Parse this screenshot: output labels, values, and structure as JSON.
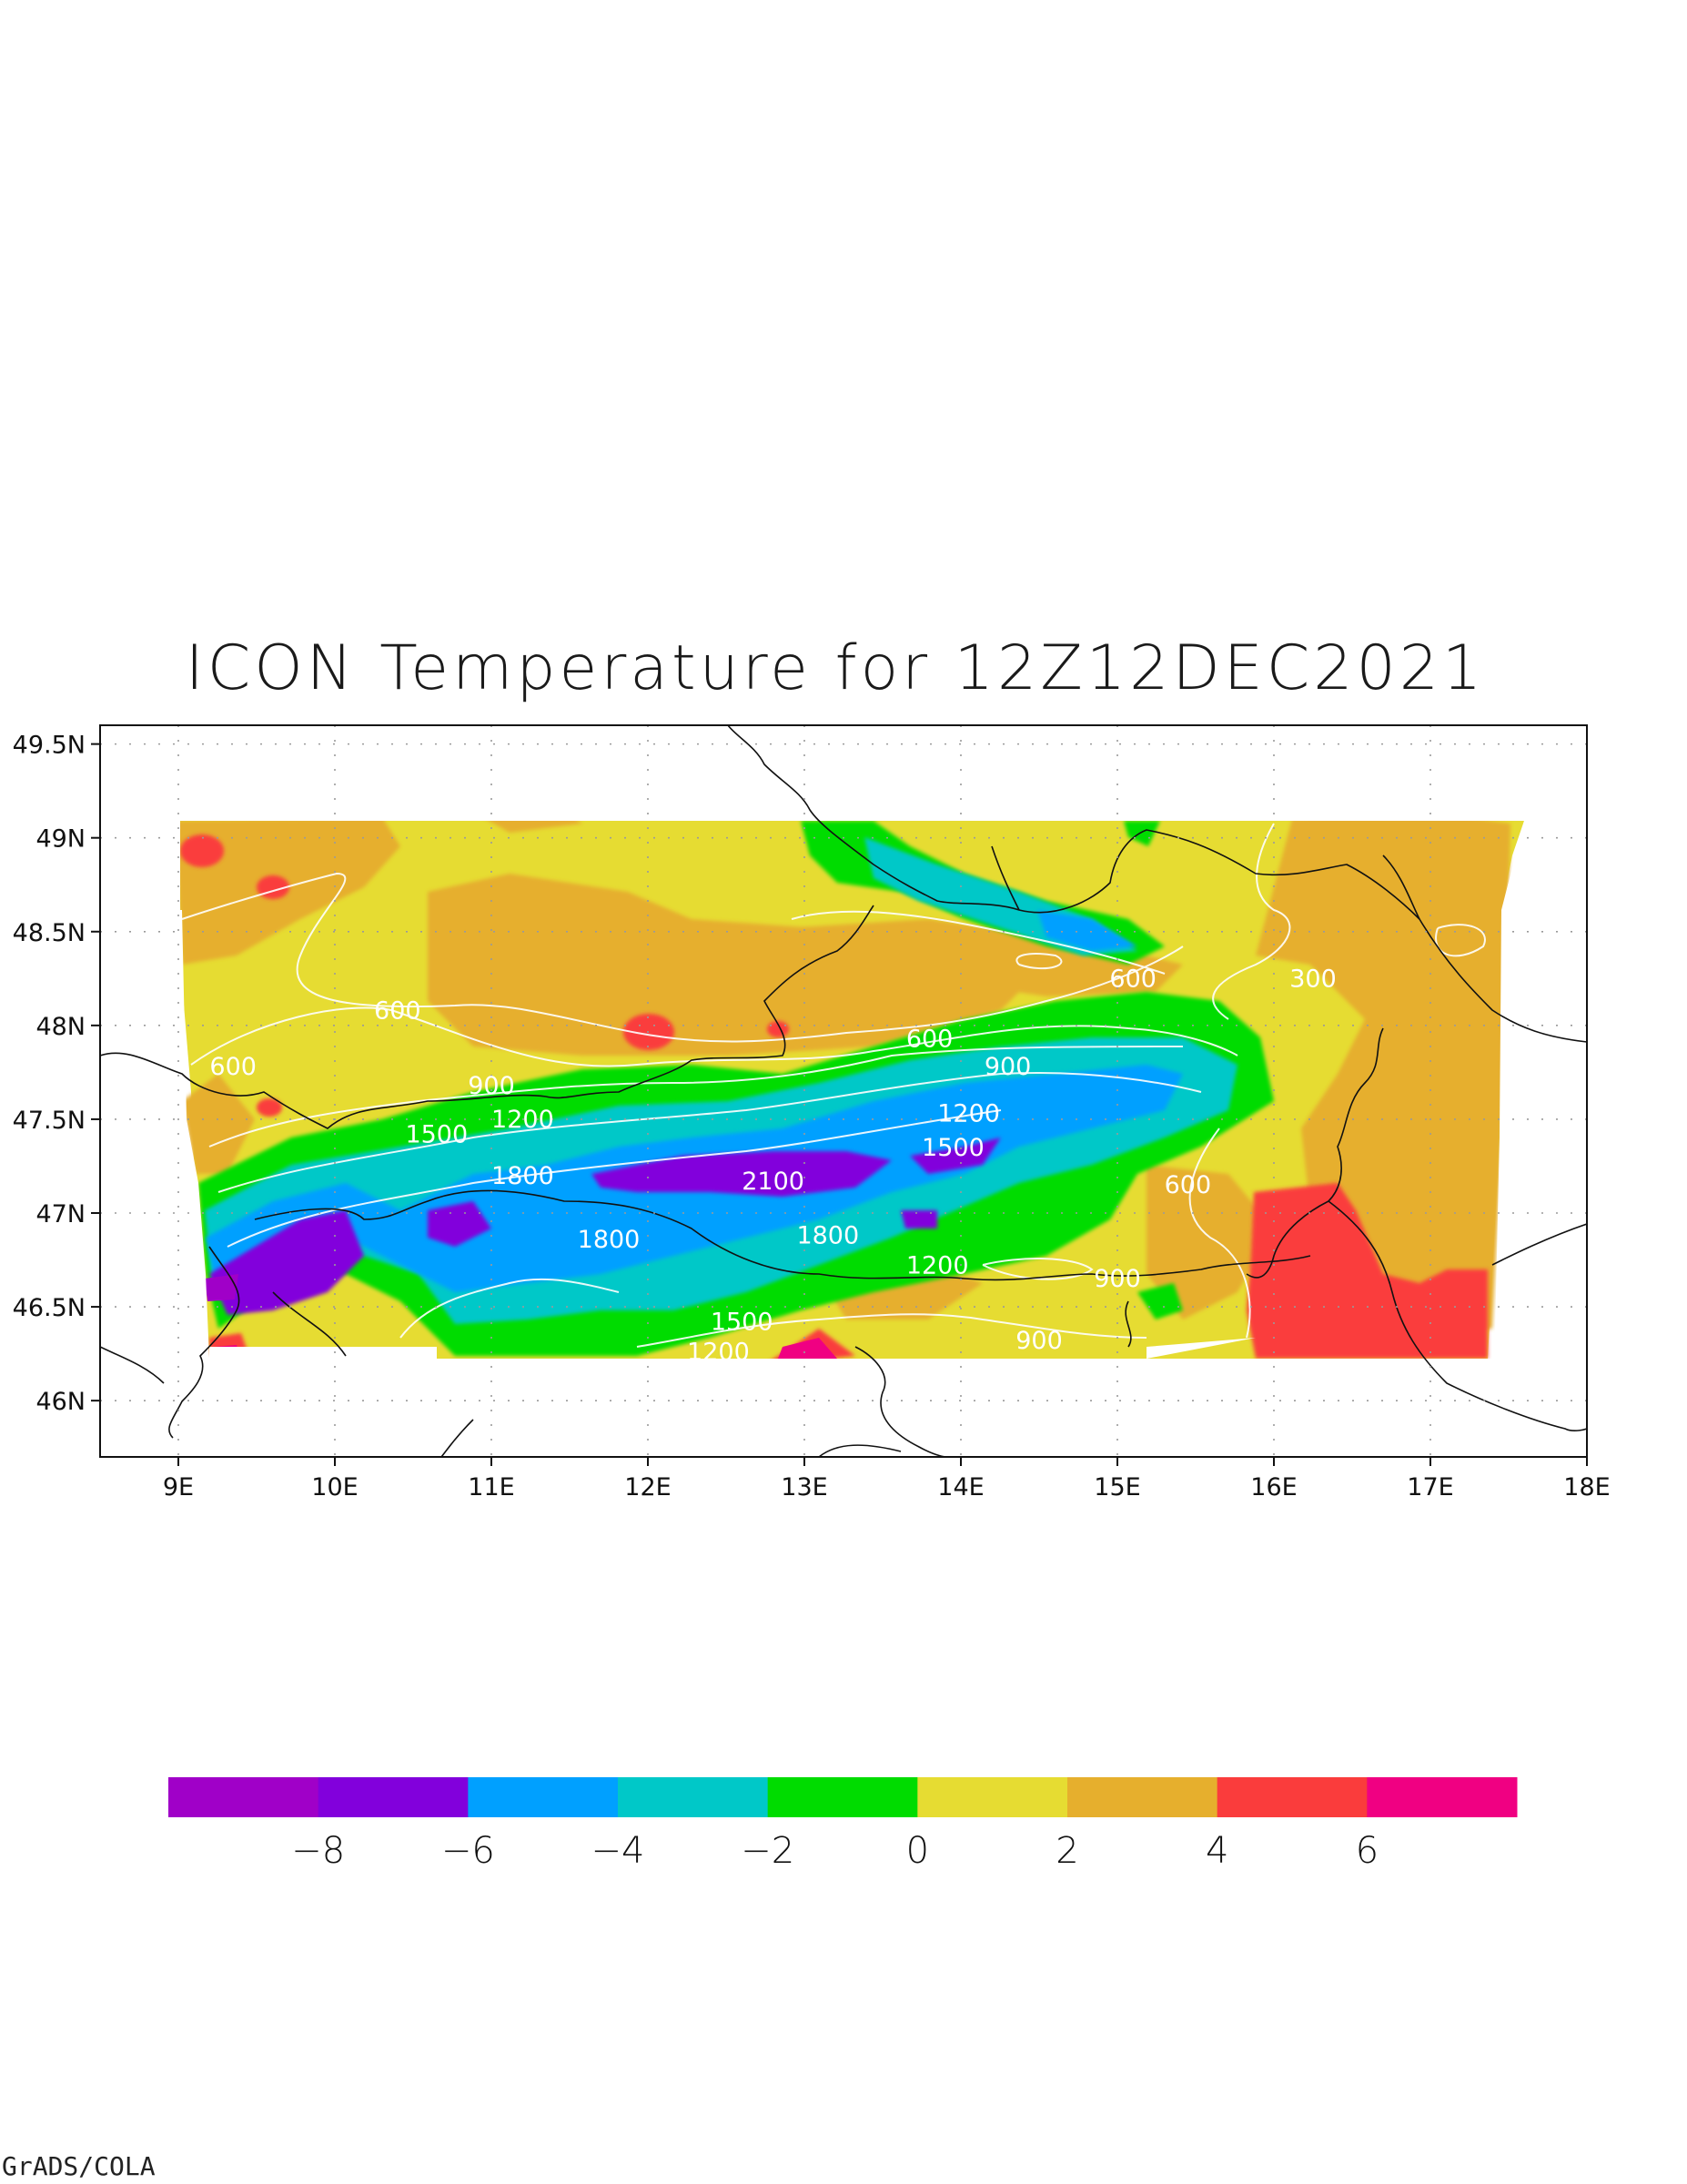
{
  "title": "ICON Temperature for 12Z12DEC2021",
  "footer": "GrADS/COLA",
  "map": {
    "lon_range": [
      8.5,
      18.0
    ],
    "lat_range": [
      45.7,
      49.6
    ],
    "lon_ticks": [
      {
        "v": 9,
        "label": "9E"
      },
      {
        "v": 10,
        "label": "10E"
      },
      {
        "v": 11,
        "label": "11E"
      },
      {
        "v": 12,
        "label": "12E"
      },
      {
        "v": 13,
        "label": "13E"
      },
      {
        "v": 14,
        "label": "14E"
      },
      {
        "v": 15,
        "label": "15E"
      },
      {
        "v": 16,
        "label": "16E"
      },
      {
        "v": 17,
        "label": "17E"
      },
      {
        "v": 18,
        "label": "18E"
      }
    ],
    "lat_ticks": [
      {
        "v": 49.5,
        "label": "49.5N"
      },
      {
        "v": 49.0,
        "label": "49N"
      },
      {
        "v": 48.5,
        "label": "48.5N"
      },
      {
        "v": 48.0,
        "label": "48N"
      },
      {
        "v": 47.5,
        "label": "47.5N"
      },
      {
        "v": 47.0,
        "label": "47N"
      },
      {
        "v": 46.5,
        "label": "46.5N"
      },
      {
        "v": 46.0,
        "label": "46N"
      }
    ],
    "grid": true,
    "contour_labels": [
      {
        "text": "600",
        "lon": 10.4,
        "lat": 48.08
      },
      {
        "text": "600",
        "lon": 9.35,
        "lat": 47.78
      },
      {
        "text": "600",
        "lon": 13.8,
        "lat": 47.93
      },
      {
        "text": "600",
        "lon": 15.1,
        "lat": 48.25
      },
      {
        "text": "300",
        "lon": 16.25,
        "lat": 48.25
      },
      {
        "text": "900",
        "lon": 11.0,
        "lat": 47.68
      },
      {
        "text": "900",
        "lon": 14.3,
        "lat": 47.78
      },
      {
        "text": "1200",
        "lon": 11.2,
        "lat": 47.5
      },
      {
        "text": "1200",
        "lon": 14.05,
        "lat": 47.53
      },
      {
        "text": "1500",
        "lon": 10.65,
        "lat": 47.42
      },
      {
        "text": "1500",
        "lon": 13.95,
        "lat": 47.35
      },
      {
        "text": "1800",
        "lon": 11.2,
        "lat": 47.2
      },
      {
        "text": "2100",
        "lon": 12.8,
        "lat": 47.17
      },
      {
        "text": "1800",
        "lon": 11.75,
        "lat": 46.86
      },
      {
        "text": "1800",
        "lon": 13.15,
        "lat": 46.88
      },
      {
        "text": "1200",
        "lon": 13.85,
        "lat": 46.72
      },
      {
        "text": "600",
        "lon": 15.45,
        "lat": 47.15
      },
      {
        "text": "900",
        "lon": 15.0,
        "lat": 46.65
      },
      {
        "text": "1500",
        "lon": 12.6,
        "lat": 46.42
      },
      {
        "text": "1200",
        "lon": 12.45,
        "lat": 46.26
      },
      {
        "text": "900",
        "lon": 14.5,
        "lat": 46.32
      }
    ]
  },
  "colorbar": {
    "colors": [
      "#a000c8",
      "#8200dc",
      "#00a0ff",
      "#00c8c8",
      "#00dc00",
      "#e6dc32",
      "#e6af2d",
      "#fa3c3c",
      "#f00082"
    ],
    "labels": [
      "−8",
      "−6",
      "−4",
      "−2",
      "0",
      "2",
      "4",
      "6"
    ]
  }
}
